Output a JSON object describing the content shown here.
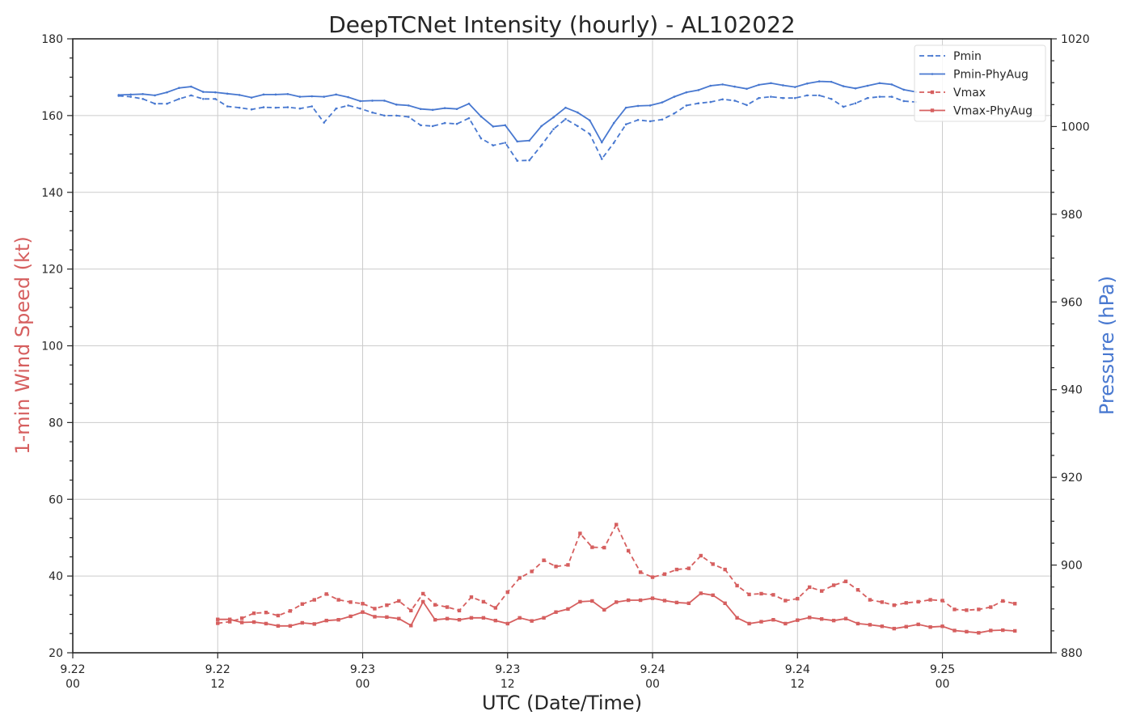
{
  "chart_data": {
    "type": "line",
    "title": "DeepTCNet Intensity (hourly) - AL102022",
    "xlabel": "UTC (Date/Time)",
    "ylabel_left": "1-min Wind Speed (kt)",
    "ylabel_right": "Pressure (hPa)",
    "ylim_left": [
      20,
      180
    ],
    "ylim_right": [
      880,
      1020
    ],
    "left_ticks": [
      "20",
      "40",
      "60",
      "80",
      "100",
      "120",
      "140",
      "160",
      "180"
    ],
    "right_ticks": [
      "880",
      "900",
      "920",
      "940",
      "960",
      "980",
      "1000",
      "1020"
    ],
    "x_range_hours": [
      0,
      81
    ],
    "x_ticks": [
      {
        "hour": 0,
        "line1": "9.22",
        "line2": "00"
      },
      {
        "hour": 12,
        "line1": "9.22",
        "line2": "12"
      },
      {
        "hour": 24,
        "line1": "9.23",
        "line2": "00"
      },
      {
        "hour": 36,
        "line1": "9.23",
        "line2": "12"
      },
      {
        "hour": 48,
        "line1": "9.24",
        "line2": "00"
      },
      {
        "hour": 60,
        "line1": "9.24",
        "line2": "12"
      },
      {
        "hour": 72,
        "line1": "9.25",
        "line2": "00"
      }
    ],
    "grid": true,
    "legend_position": "upper-right",
    "colors": {
      "pressure": "#4878d0",
      "wind": "#d65f5f",
      "axis": "#262626",
      "grid": "#cccccc"
    },
    "series": [
      {
        "name": "Pmin",
        "axis": "right",
        "style": "dashed",
        "color": "#4878d0",
        "start_hour": 3.8,
        "values": [
          1007,
          1006.8,
          1006.3,
          1005.2,
          1005.2,
          1006.3,
          1007.1,
          1006.3,
          1006.3,
          1004.6,
          1004.3,
          1003.9,
          1004.4,
          1004.3,
          1004.4,
          1004.1,
          1004.6,
          1000.9,
          1004.1,
          1004.8,
          1004.1,
          1003.2,
          1002.5,
          1002.5,
          1002.2,
          1000.3,
          1000.1,
          1000.8,
          1000.6,
          1001.9,
          997.3,
          995.7,
          996.3,
          992.2,
          992.3,
          995.7,
          999.4,
          1001.7,
          1000.1,
          998.3,
          992.6,
          996.3,
          1000.5,
          1001.5,
          1001.2,
          1001.6,
          1003,
          1004.8,
          1005.3,
          1005.6,
          1006.2,
          1005.9,
          1004.9,
          1006.5,
          1006.8,
          1006.5,
          1006.5,
          1007.1,
          1007.1,
          1006.3,
          1004.5,
          1005.3,
          1006.5,
          1006.8,
          1006.8,
          1005.8,
          1005.6
        ]
      },
      {
        "name": "Pmin-PhyAug",
        "axis": "right",
        "style": "solid",
        "color": "#4878d0",
        "start_hour": 3.8,
        "values": [
          1007.2,
          1007.3,
          1007.4,
          1007.1,
          1007.8,
          1008.8,
          1009.1,
          1007.9,
          1007.8,
          1007.5,
          1007.2,
          1006.6,
          1007.3,
          1007.3,
          1007.4,
          1006.8,
          1006.9,
          1006.8,
          1007.3,
          1006.7,
          1005.8,
          1005.9,
          1005.9,
          1005,
          1004.8,
          1004,
          1003.8,
          1004.2,
          1004,
          1005.2,
          1002.3,
          1000,
          1000.3,
          996.6,
          996.8,
          1000.1,
          1002.1,
          1004.3,
          1003.2,
          1001.4,
          996.4,
          1000.8,
          1004.3,
          1004.7,
          1004.8,
          1005.5,
          1006.8,
          1007.8,
          1008.3,
          1009.3,
          1009.6,
          1009.1,
          1008.6,
          1009.5,
          1009.9,
          1009.4,
          1009,
          1009.8,
          1010.3,
          1010.2,
          1009.2,
          1008.7,
          1009.3,
          1009.9,
          1009.6,
          1008.4,
          1007.9
        ]
      },
      {
        "name": "Vmax",
        "axis": "left",
        "style": "dashed",
        "color": "#d65f5f",
        "start_hour": 12,
        "values": [
          27.7,
          28.1,
          29,
          30.3,
          30.5,
          29.7,
          30.9,
          32.7,
          33.8,
          35.3,
          33.8,
          33.2,
          32.8,
          31.5,
          32.4,
          33.5,
          31,
          35.4,
          32.5,
          31.9,
          31,
          34.5,
          33.3,
          31.7,
          35.8,
          39.5,
          41.2,
          44.1,
          42.5,
          42.9,
          51.1,
          47.5,
          47.4,
          53.4,
          46.6,
          41,
          39.7,
          40.5,
          41.7,
          42,
          45.3,
          43.1,
          41.7,
          37.5,
          35.2,
          35.4,
          35.1,
          33.6,
          34.1,
          37.1,
          36.1,
          37.6,
          38.6,
          36.4,
          33.8,
          33.2,
          32.4,
          33,
          33.3,
          33.8,
          33.6,
          31.3,
          31.1,
          31.3,
          31.9,
          33.5,
          32.8
        ]
      },
      {
        "name": "Vmax-PhyAug",
        "axis": "left",
        "style": "solid",
        "color": "#d65f5f",
        "start_hour": 12,
        "values": [
          28.7,
          28.7,
          27.9,
          28,
          27.6,
          27,
          27,
          27.8,
          27.5,
          28.4,
          28.6,
          29.5,
          30.6,
          29.4,
          29.3,
          28.9,
          27.1,
          33.3,
          28.6,
          28.9,
          28.6,
          29.1,
          29.1,
          28.4,
          27.6,
          29.1,
          28.3,
          29.1,
          30.6,
          31.4,
          33.3,
          33.5,
          31.2,
          33.2,
          33.7,
          33.7,
          34.2,
          33.6,
          33.1,
          32.9,
          35.5,
          35,
          32.9,
          29.1,
          27.6,
          28.1,
          28.6,
          27.6,
          28.5,
          29.2,
          28.8,
          28.4,
          28.9,
          27.6,
          27.3,
          26.9,
          26.3,
          26.8,
          27.4,
          26.7,
          26.9,
          25.8,
          25.5,
          25.2,
          25.8,
          25.9,
          25.7
        ]
      }
    ]
  }
}
